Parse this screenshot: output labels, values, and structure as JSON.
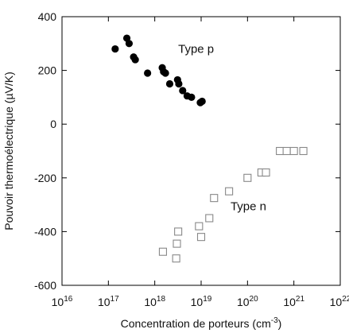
{
  "chart_data": {
    "type": "scatter",
    "xlabel_text": "Concentration de porteurs (cm",
    "xlabel_unit_exponent": "-3",
    "xlabel_close": ")",
    "ylabel": "Pouvoir thermoélectrique (µV/K)",
    "x_scale": "log",
    "xlim": [
      1e+16,
      1e+22
    ],
    "ylim": [
      -600,
      400
    ],
    "x_tick_base": "10",
    "x_ticks": [
      {
        "value": 1e+16,
        "exponent": "16"
      },
      {
        "value": 1e+17,
        "exponent": "17"
      },
      {
        "value": 1e+18,
        "exponent": "18"
      },
      {
        "value": 1e+19,
        "exponent": "19"
      },
      {
        "value": 1e+20,
        "exponent": "20"
      },
      {
        "value": 1e+21,
        "exponent": "21"
      },
      {
        "value": 1e+22,
        "exponent": "22"
      }
    ],
    "y_ticks": [
      {
        "value": 400,
        "label": "400"
      },
      {
        "value": 200,
        "label": "200"
      },
      {
        "value": 0,
        "label": "0"
      },
      {
        "value": -200,
        "label": "-200"
      },
      {
        "value": -400,
        "label": "-400"
      },
      {
        "value": -600,
        "label": "-600"
      }
    ],
    "grid": false,
    "legend": "none",
    "annotations": [
      {
        "text": "Type p",
        "x": 3.2e+18,
        "y": 265
      },
      {
        "text": "Type n",
        "x": 4.3e+19,
        "y": -320
      }
    ],
    "series": [
      {
        "marker": "filled-circle",
        "color": "#000000",
        "x": [
          1.4e+17,
          2.5e+17,
          2.8e+17,
          3.5e+17,
          3.8e+17,
          7e+17,
          1.45e+18,
          1.55e+18,
          1.7e+18,
          2.1e+18,
          3.1e+18,
          3.3e+18,
          4e+18,
          5e+18,
          6.2e+18,
          9.6e+18,
          1.05e+19
        ],
        "y": [
          280,
          320,
          300,
          250,
          240,
          190,
          210,
          195,
          190,
          150,
          165,
          150,
          125,
          105,
          100,
          80,
          85
        ]
      },
      {
        "marker": "open-square",
        "color": "#888888",
        "x": [
          1.5e+18,
          2.9e+18,
          3e+18,
          3.2e+18,
          9e+18,
          1e+19,
          1.5e+19,
          1.9e+19,
          4e+19,
          1e+20,
          2e+20,
          2.5e+20,
          5e+20,
          7e+20,
          1e+21,
          1.6e+21
        ],
        "y": [
          -475,
          -500,
          -445,
          -400,
          -380,
          -420,
          -350,
          -275,
          -250,
          -200,
          -180,
          -180,
          -100,
          -100,
          -100,
          -100
        ]
      }
    ]
  }
}
